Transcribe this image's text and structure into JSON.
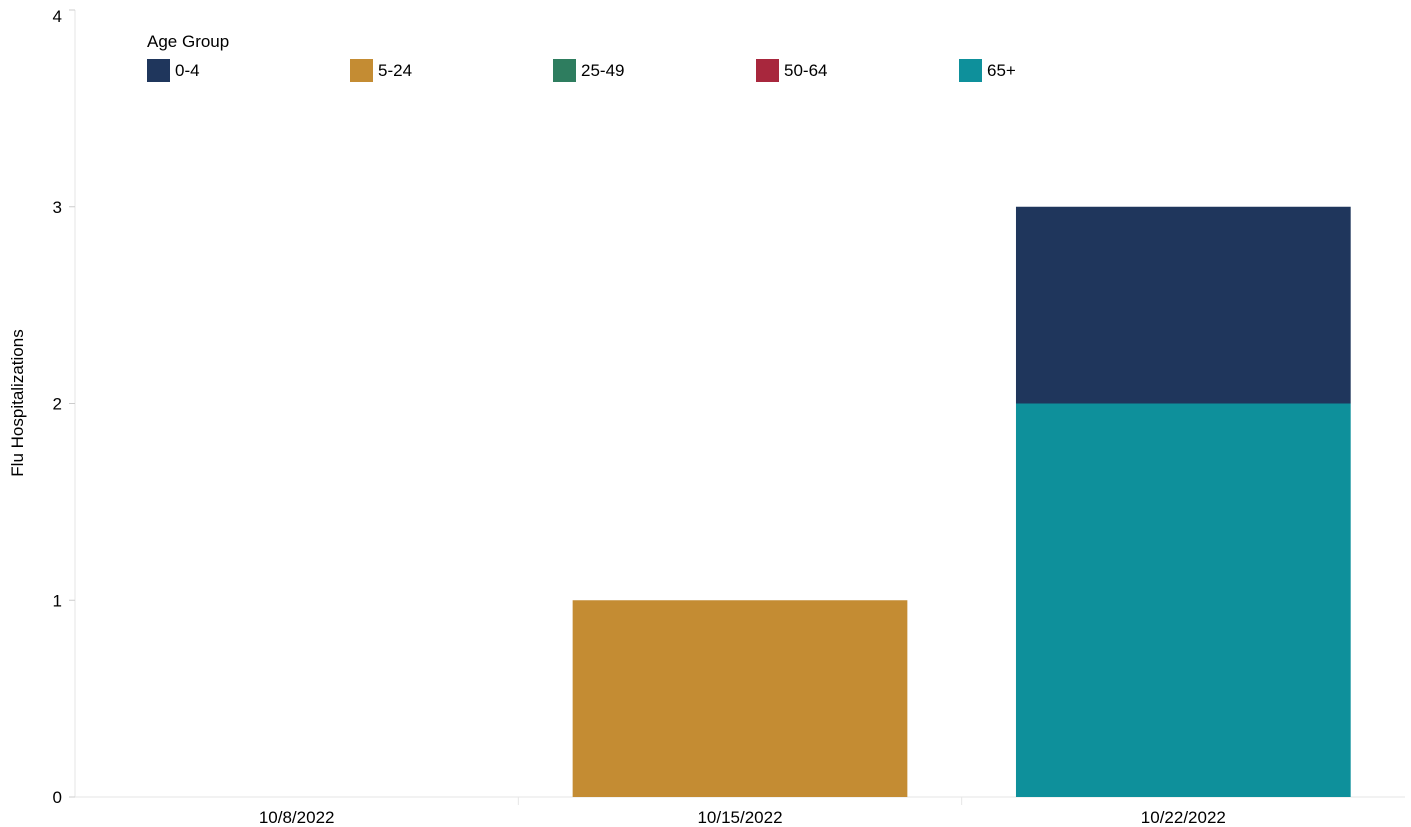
{
  "chart_data": {
    "type": "bar",
    "stacked": true,
    "categories": [
      "10/8/2022",
      "10/15/2022",
      "10/22/2022"
    ],
    "series": [
      {
        "name": "0-4",
        "color": "#1f365c",
        "values": [
          0,
          0,
          1
        ]
      },
      {
        "name": "5-24",
        "color": "#c48c33",
        "values": [
          0,
          1,
          0
        ]
      },
      {
        "name": "25-49",
        "color": "#2e7d5f",
        "values": [
          0,
          0,
          0
        ]
      },
      {
        "name": "50-64",
        "color": "#a8273d",
        "values": [
          0,
          0,
          0
        ]
      },
      {
        "name": "65+",
        "color": "#0e909b",
        "values": [
          0,
          0,
          2
        ]
      }
    ],
    "stack_order": [
      "65+",
      "50-64",
      "25-49",
      "5-24",
      "0-4"
    ],
    "xlabel": "",
    "ylabel": "Flu Hospitalizations",
    "ylim": [
      0,
      4
    ],
    "yticks": [
      0,
      1,
      2,
      3,
      4
    ],
    "legend_title": "Age Group",
    "legend_position": "top-left",
    "grid": false
  }
}
